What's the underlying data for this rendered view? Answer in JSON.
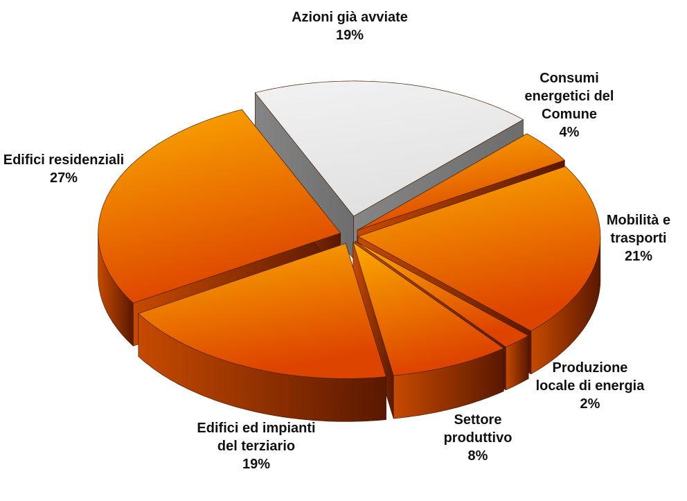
{
  "chart_data": {
    "type": "pie3d",
    "categories": [
      "Azioni già avviate",
      "Consumi energetici del Comune",
      "Mobilità e trasporti",
      "Produzione locale di energia",
      "Settore produttivo",
      "Edifici ed impianti del terziario",
      "Edifici residenziali"
    ],
    "values": [
      19,
      4,
      21,
      2,
      8,
      19,
      27
    ],
    "value_labels": [
      "19%",
      "4%",
      "21%",
      "2%",
      "8%",
      "19%",
      "27%"
    ],
    "colors": [
      "#f2f2f2",
      "#fbab00",
      "#fbab00",
      "#fbab00",
      "#fbab00",
      "#fbab00",
      "#fbab00"
    ]
  }
}
